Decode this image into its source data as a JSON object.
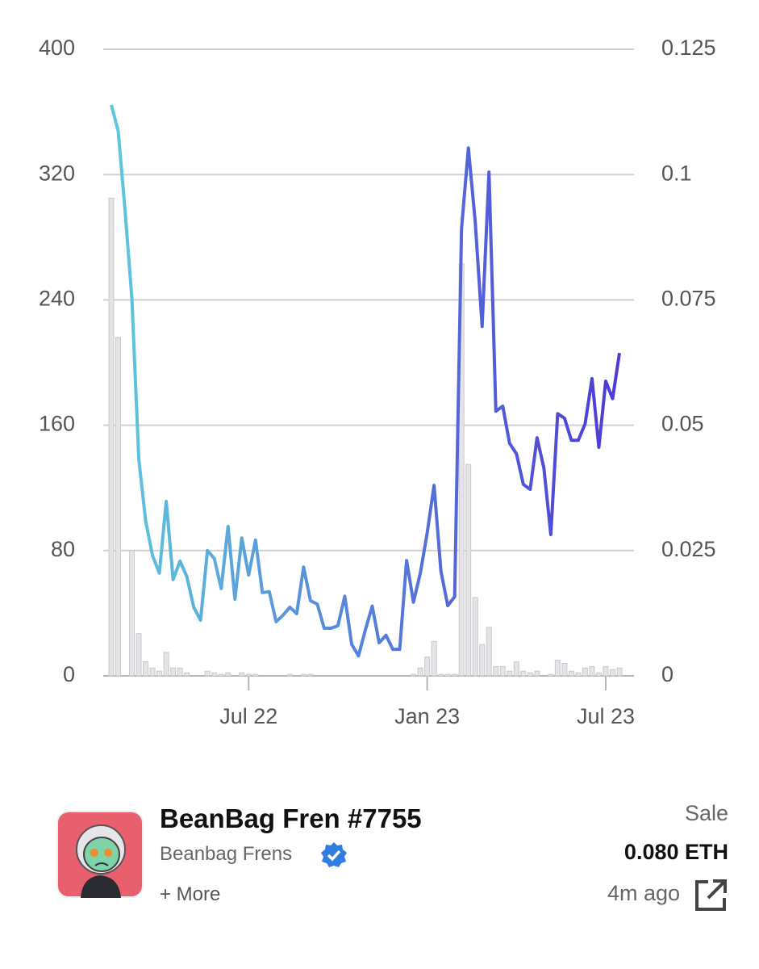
{
  "chart_data": {
    "type": "line",
    "categories": [
      null,
      null,
      null,
      null,
      null,
      null,
      null,
      null,
      null,
      null,
      null,
      null,
      null,
      null,
      null,
      null,
      null,
      null,
      null,
      null,
      "Jul 22",
      null,
      null,
      null,
      null,
      null,
      null,
      null,
      null,
      null,
      null,
      null,
      null,
      null,
      null,
      null,
      null,
      null,
      null,
      null,
      null,
      null,
      null,
      null,
      null,
      null,
      "Jan 23",
      null,
      null,
      null,
      null,
      null,
      null,
      null,
      null,
      null,
      null,
      null,
      null,
      null,
      null,
      null,
      null,
      null,
      null,
      null,
      null,
      null,
      null,
      null,
      null,
      null,
      "Jul 23",
      null,
      null
    ],
    "series": [
      {
        "type": "bar",
        "axis": "y",
        "color": "#e4e4e7",
        "values": [
          305,
          216,
          0,
          80,
          27,
          9,
          5,
          3,
          15,
          5,
          5,
          2,
          0,
          0,
          3,
          2,
          1,
          2,
          0,
          2,
          1,
          1,
          0,
          0,
          0,
          0,
          1,
          0,
          1,
          1,
          0,
          0,
          0,
          0,
          0,
          0,
          0,
          0,
          0,
          0,
          0,
          0,
          0,
          0,
          1,
          5,
          12,
          22,
          1,
          1,
          1,
          263,
          135,
          50,
          20,
          31,
          6,
          6,
          3,
          9,
          3,
          2,
          3,
          0,
          1,
          10,
          8,
          3,
          2,
          5,
          6,
          2,
          6,
          4,
          5
        ]
      },
      {
        "type": "line",
        "axis": "y2",
        "colors": [
          "#5ec8de",
          "#4e3ad6"
        ],
        "values": [
          0.1139,
          0.1087,
          0.0929,
          0.0752,
          0.0433,
          0.0309,
          0.024,
          0.0205,
          0.0348,
          0.0192,
          0.0229,
          0.0198,
          0.0137,
          0.0111,
          0.025,
          0.0234,
          0.0174,
          0.0298,
          0.0153,
          0.0275,
          0.0201,
          0.0271,
          0.0166,
          0.0168,
          0.0108,
          0.0121,
          0.0137,
          0.0124,
          0.0217,
          0.015,
          0.0143,
          0.0095,
          0.0095,
          0.01,
          0.0159,
          0.0063,
          0.004,
          0.0092,
          0.0139,
          0.0066,
          0.0081,
          0.0053,
          0.0053,
          0.023,
          0.0147,
          0.0205,
          0.0285,
          0.038,
          0.0209,
          0.014,
          0.0158,
          0.0892,
          0.1053,
          0.0905,
          0.0697,
          0.1005,
          0.0528,
          0.0538,
          0.0464,
          0.0443,
          0.0382,
          0.0372,
          0.0475,
          0.0414,
          0.0282,
          0.0523,
          0.0514,
          0.047,
          0.047,
          0.0503,
          0.0593,
          0.0456,
          0.0588,
          0.0553,
          0.0644
        ]
      }
    ],
    "ylim": [
      0,
      400
    ],
    "yticks": [
      0,
      80,
      160,
      240,
      320,
      400
    ],
    "y2lim": [
      0,
      0.125
    ],
    "y2ticks": [
      0,
      0.025,
      0.05,
      0.075,
      0.1,
      0.125
    ],
    "grid": true
  },
  "item": {
    "title": "BeanBag Fren #7755",
    "collection": "Beanbag Frens",
    "more": "+ More"
  },
  "sale": {
    "label": "Sale",
    "price": "0.080 ETH",
    "time": "4m ago"
  }
}
